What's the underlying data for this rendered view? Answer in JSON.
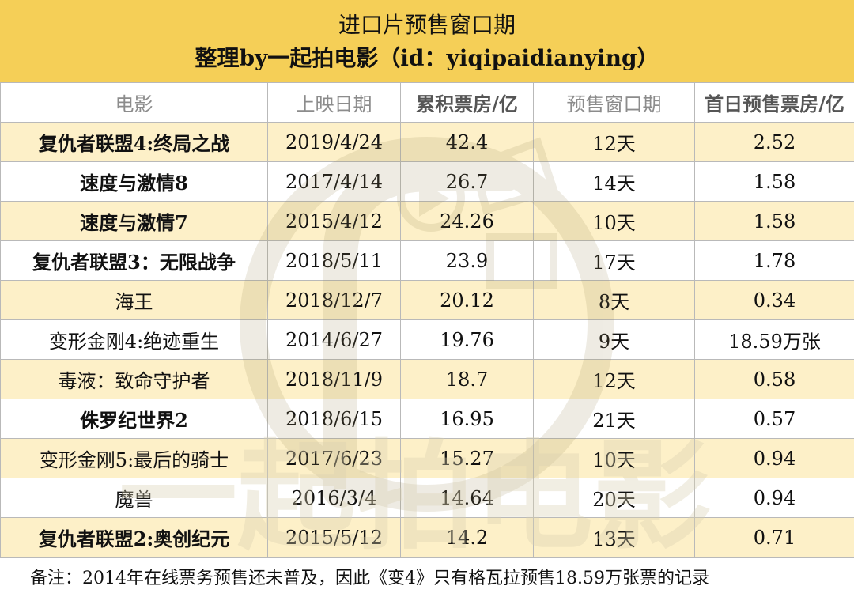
{
  "header": {
    "title": "进口片预售窗口期",
    "subtitle": "整理by一起拍电影（id：yiqipaidianying）"
  },
  "columns": [
    "电影",
    "上映日期",
    "累积票房/亿",
    "预售窗口期",
    "首日预售票房/亿"
  ],
  "rows": [
    {
      "name": "复仇者联盟4:终局之战",
      "date": "2019/4/24",
      "box": "42.4",
      "window": "12天",
      "first_day": "2.52"
    },
    {
      "name": "速度与激情8",
      "date": "2017/4/14",
      "box": "26.7",
      "window": "14天",
      "first_day": "1.58"
    },
    {
      "name": "速度与激情7",
      "date": "2015/4/12",
      "box": "24.26",
      "window": "10天",
      "first_day": "1.58"
    },
    {
      "name": "复仇者联盟3：无限战争",
      "date": "2018/5/11",
      "box": "23.9",
      "window": "17天",
      "first_day": "1.78"
    },
    {
      "name": "海王",
      "date": "2018/12/7",
      "box": "20.12",
      "window": "8天",
      "first_day": "0.34"
    },
    {
      "name": "变形金刚4:绝迹重生",
      "date": "2014/6/27",
      "box": "19.76",
      "window": "9天",
      "first_day": "18.59万张"
    },
    {
      "name": "毒液：致命守护者",
      "date": "2018/11/9",
      "box": "18.7",
      "window": "12天",
      "first_day": "0.58"
    },
    {
      "name": "侏罗纪世界2",
      "date": "2018/6/15",
      "box": "16.95",
      "window": "21天",
      "first_day": "0.57"
    },
    {
      "name": "变形金刚5:最后的骑士",
      "date": "2017/6/23",
      "box": "15.27",
      "window": "10天",
      "first_day": "0.94"
    },
    {
      "name": "魔兽",
      "date": "2016/3/4",
      "box": "14.64",
      "window": "20天",
      "first_day": "0.94"
    },
    {
      "name": "复仇者联盟2:奥创纪元",
      "date": "2015/5/12",
      "box": "14.2",
      "window": "13天",
      "first_day": "0.71"
    }
  ],
  "note": "备注：2014年在线票务预售还未普及，因此《变4》只有格瓦拉预售18.59万张票的记录",
  "watermark": {
    "text": "一起拍电影",
    "icon": "play-film-logo-icon"
  },
  "colors": {
    "header_bg": "#f5cf57",
    "row_alt_bg": "#fdf0c8",
    "border": "#b9b9b9"
  }
}
